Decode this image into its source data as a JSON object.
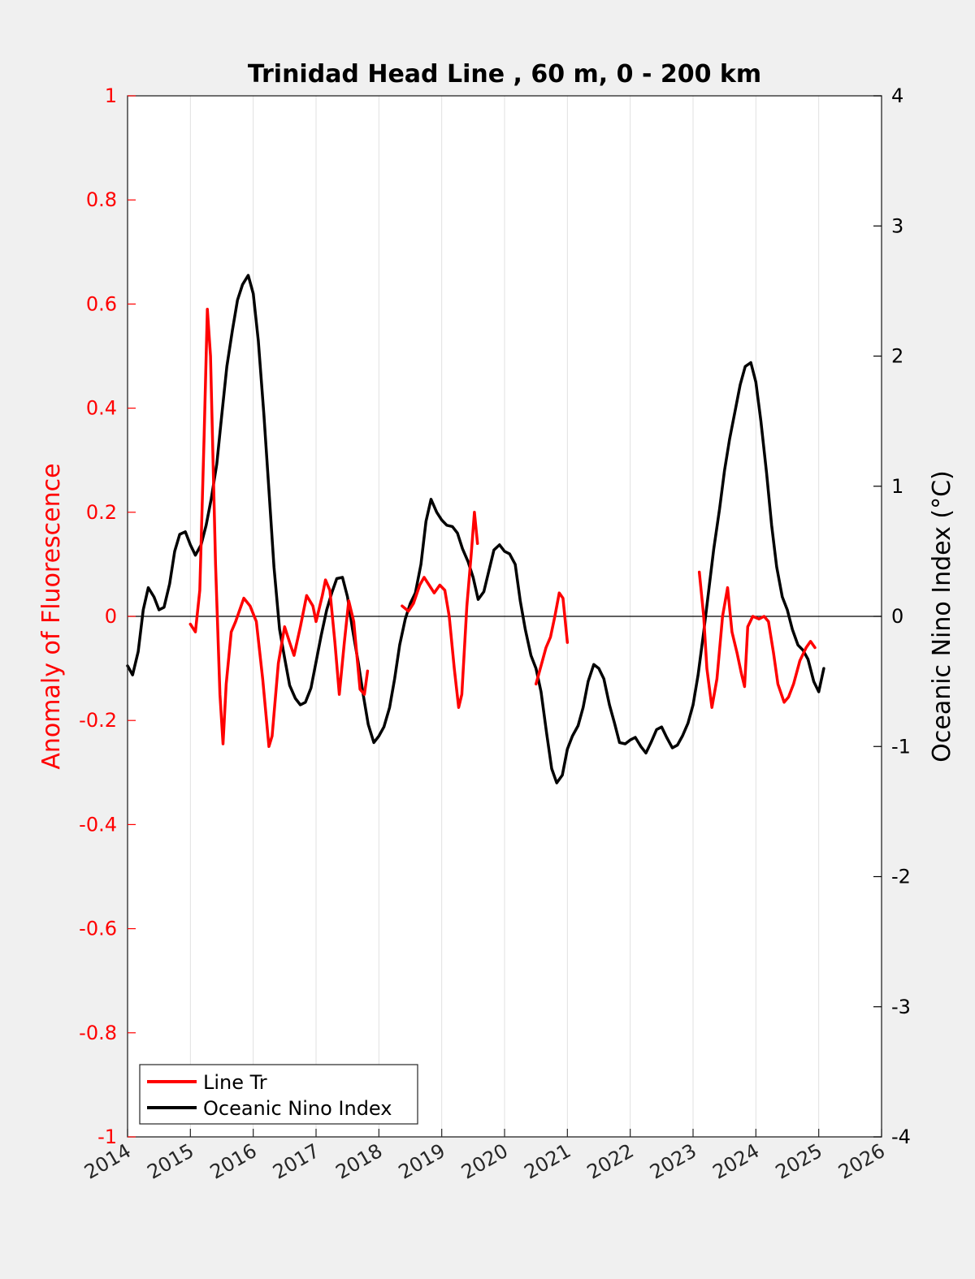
{
  "chart_data": {
    "type": "line",
    "title": "Trinidad Head Line , 60 m, 0 - 200 km",
    "ylabel_left": "Anomaly of Fluorescence",
    "ylabel_right": "Oceanic Nino Index (°C)",
    "xlim": [
      2014,
      2026
    ],
    "ylim_left": [
      -1,
      1
    ],
    "ylim_right": [
      -4,
      4
    ],
    "x_ticks": [
      "2014",
      "2015",
      "2016",
      "2017",
      "2018",
      "2019",
      "2020",
      "2021",
      "2022",
      "2023",
      "2024",
      "2025",
      "2026"
    ],
    "y_ticks_left": [
      "1",
      "0.8",
      "0.6",
      "0.4",
      "0.2",
      "0",
      "-0.2",
      "-0.4",
      "-0.6",
      "-0.8",
      "-1"
    ],
    "y_ticks_right": [
      "4",
      "3",
      "2",
      "1",
      "0",
      "-1",
      "-2",
      "-3",
      "-4"
    ],
    "grid": "vertical",
    "legend_position": "bottom-left",
    "colors": {
      "left_axis": "#ff0000",
      "right_axis": "#000000",
      "background": "#f0f0f0",
      "plot_background": "#ffffff",
      "grid": "#e0e0e0"
    },
    "series": [
      {
        "name": "Line Tr",
        "axis": "left",
        "color": "#ff0000",
        "segments": [
          [
            [
              2015.0,
              -0.015
            ],
            [
              2015.08,
              -0.03
            ],
            [
              2015.15,
              0.05
            ],
            [
              2015.22,
              0.35
            ],
            [
              2015.27,
              0.59
            ],
            [
              2015.32,
              0.5
            ],
            [
              2015.4,
              0.1
            ],
            [
              2015.47,
              -0.15
            ],
            [
              2015.52,
              -0.245
            ],
            [
              2015.57,
              -0.13
            ],
            [
              2015.65,
              -0.03
            ],
            [
              2015.72,
              -0.01
            ],
            [
              2015.85,
              0.035
            ],
            [
              2015.95,
              0.02
            ],
            [
              2016.05,
              -0.01
            ],
            [
              2016.15,
              -0.12
            ],
            [
              2016.25,
              -0.25
            ],
            [
              2016.3,
              -0.23
            ],
            [
              2016.4,
              -0.09
            ],
            [
              2016.5,
              -0.02
            ],
            [
              2016.58,
              -0.05
            ],
            [
              2016.65,
              -0.075
            ],
            [
              2016.75,
              -0.02
            ],
            [
              2016.85,
              0.04
            ],
            [
              2016.95,
              0.02
            ],
            [
              2017.0,
              -0.01
            ],
            [
              2017.1,
              0.04
            ],
            [
              2017.15,
              0.07
            ],
            [
              2017.22,
              0.05
            ],
            [
              2017.3,
              -0.05
            ],
            [
              2017.37,
              -0.15
            ],
            [
              2017.45,
              -0.05
            ],
            [
              2017.52,
              0.03
            ],
            [
              2017.6,
              -0.01
            ],
            [
              2017.7,
              -0.14
            ],
            [
              2017.77,
              -0.15
            ],
            [
              2017.82,
              -0.105
            ]
          ],
          [
            [
              2018.37,
              0.02
            ],
            [
              2018.47,
              0.01
            ],
            [
              2018.55,
              0.025
            ],
            [
              2018.65,
              0.06
            ],
            [
              2018.72,
              0.075
            ],
            [
              2018.8,
              0.06
            ],
            [
              2018.88,
              0.045
            ],
            [
              2018.97,
              0.06
            ],
            [
              2019.05,
              0.05
            ],
            [
              2019.12,
              0.0
            ],
            [
              2019.2,
              -0.1
            ],
            [
              2019.27,
              -0.175
            ],
            [
              2019.32,
              -0.15
            ],
            [
              2019.4,
              0.02
            ],
            [
              2019.47,
              0.12
            ],
            [
              2019.52,
              0.2
            ],
            [
              2019.57,
              0.14
            ]
          ],
          [
            [
              2020.5,
              -0.13
            ],
            [
              2020.58,
              -0.095
            ],
            [
              2020.66,
              -0.06
            ],
            [
              2020.73,
              -0.04
            ],
            [
              2020.8,
              0.0
            ],
            [
              2020.87,
              0.045
            ],
            [
              2020.93,
              0.035
            ],
            [
              2021.0,
              -0.05
            ]
          ],
          [
            [
              2023.1,
              0.085
            ],
            [
              2023.17,
              0.0
            ],
            [
              2023.22,
              -0.1
            ],
            [
              2023.3,
              -0.175
            ],
            [
              2023.38,
              -0.12
            ],
            [
              2023.47,
              0.0
            ],
            [
              2023.55,
              0.055
            ],
            [
              2023.62,
              -0.03
            ],
            [
              2023.7,
              -0.07
            ],
            [
              2023.77,
              -0.11
            ],
            [
              2023.82,
              -0.135
            ],
            [
              2023.87,
              -0.02
            ],
            [
              2023.95,
              0.0
            ],
            [
              2024.05,
              -0.005
            ],
            [
              2024.13,
              0.0
            ],
            [
              2024.2,
              -0.01
            ],
            [
              2024.28,
              -0.07
            ],
            [
              2024.35,
              -0.13
            ],
            [
              2024.45,
              -0.165
            ],
            [
              2024.52,
              -0.155
            ],
            [
              2024.6,
              -0.13
            ],
            [
              2024.7,
              -0.085
            ],
            [
              2024.8,
              -0.06
            ],
            [
              2024.87,
              -0.048
            ],
            [
              2024.94,
              -0.06
            ]
          ]
        ]
      },
      {
        "name": "Oceanic Nino Index",
        "axis": "right",
        "color": "#000000",
        "segments": [
          [
            [
              2014.0,
              -0.38
            ],
            [
              2014.08,
              -0.45
            ],
            [
              2014.17,
              -0.27
            ],
            [
              2014.25,
              0.05
            ],
            [
              2014.33,
              0.22
            ],
            [
              2014.42,
              0.15
            ],
            [
              2014.5,
              0.05
            ],
            [
              2014.58,
              0.07
            ],
            [
              2014.67,
              0.25
            ],
            [
              2014.75,
              0.5
            ],
            [
              2014.83,
              0.63
            ],
            [
              2014.92,
              0.65
            ],
            [
              2015.0,
              0.55
            ],
            [
              2015.08,
              0.47
            ],
            [
              2015.17,
              0.55
            ],
            [
              2015.25,
              0.7
            ],
            [
              2015.33,
              0.9
            ],
            [
              2015.42,
              1.17
            ],
            [
              2015.5,
              1.55
            ],
            [
              2015.58,
              1.92
            ],
            [
              2015.67,
              2.2
            ],
            [
              2015.75,
              2.43
            ],
            [
              2015.83,
              2.55
            ],
            [
              2015.92,
              2.62
            ],
            [
              2016.0,
              2.48
            ],
            [
              2016.08,
              2.12
            ],
            [
              2016.17,
              1.55
            ],
            [
              2016.25,
              0.97
            ],
            [
              2016.33,
              0.38
            ],
            [
              2016.42,
              -0.1
            ],
            [
              2016.5,
              -0.32
            ],
            [
              2016.58,
              -0.53
            ],
            [
              2016.67,
              -0.63
            ],
            [
              2016.75,
              -0.68
            ],
            [
              2016.83,
              -0.66
            ],
            [
              2016.92,
              -0.55
            ],
            [
              2017.0,
              -0.35
            ],
            [
              2017.08,
              -0.15
            ],
            [
              2017.17,
              0.05
            ],
            [
              2017.25,
              0.18
            ],
            [
              2017.33,
              0.29
            ],
            [
              2017.42,
              0.3
            ],
            [
              2017.5,
              0.15
            ],
            [
              2017.58,
              -0.1
            ],
            [
              2017.67,
              -0.35
            ],
            [
              2017.75,
              -0.6
            ],
            [
              2017.83,
              -0.83
            ],
            [
              2017.92,
              -0.97
            ],
            [
              2018.0,
              -0.92
            ],
            [
              2018.08,
              -0.85
            ],
            [
              2018.17,
              -0.7
            ],
            [
              2018.25,
              -0.48
            ],
            [
              2018.33,
              -0.22
            ],
            [
              2018.42,
              -0.02
            ],
            [
              2018.5,
              0.1
            ],
            [
              2018.58,
              0.18
            ],
            [
              2018.67,
              0.4
            ],
            [
              2018.75,
              0.73
            ],
            [
              2018.83,
              0.9
            ],
            [
              2018.92,
              0.8
            ],
            [
              2019.0,
              0.74
            ],
            [
              2019.08,
              0.7
            ],
            [
              2019.17,
              0.69
            ],
            [
              2019.25,
              0.64
            ],
            [
              2019.33,
              0.52
            ],
            [
              2019.42,
              0.42
            ],
            [
              2019.5,
              0.3
            ],
            [
              2019.58,
              0.13
            ],
            [
              2019.67,
              0.19
            ],
            [
              2019.75,
              0.35
            ],
            [
              2019.83,
              0.51
            ],
            [
              2019.92,
              0.55
            ],
            [
              2020.0,
              0.5
            ],
            [
              2020.08,
              0.48
            ],
            [
              2020.17,
              0.4
            ],
            [
              2020.25,
              0.12
            ],
            [
              2020.33,
              -0.1
            ],
            [
              2020.42,
              -0.3
            ],
            [
              2020.5,
              -0.4
            ],
            [
              2020.58,
              -0.58
            ],
            [
              2020.67,
              -0.9
            ],
            [
              2020.75,
              -1.17
            ],
            [
              2020.83,
              -1.28
            ],
            [
              2020.92,
              -1.22
            ],
            [
              2021.0,
              -1.02
            ],
            [
              2021.08,
              -0.92
            ],
            [
              2021.17,
              -0.84
            ],
            [
              2021.25,
              -0.7
            ],
            [
              2021.33,
              -0.5
            ],
            [
              2021.42,
              -0.37
            ],
            [
              2021.5,
              -0.4
            ],
            [
              2021.58,
              -0.48
            ],
            [
              2021.67,
              -0.68
            ],
            [
              2021.75,
              -0.82
            ],
            [
              2021.83,
              -0.97
            ],
            [
              2021.92,
              -0.98
            ],
            [
              2022.0,
              -0.95
            ],
            [
              2022.08,
              -0.93
            ],
            [
              2022.17,
              -1.0
            ],
            [
              2022.25,
              -1.05
            ],
            [
              2022.33,
              -0.97
            ],
            [
              2022.42,
              -0.87
            ],
            [
              2022.5,
              -0.85
            ],
            [
              2022.58,
              -0.93
            ],
            [
              2022.67,
              -1.01
            ],
            [
              2022.75,
              -0.99
            ],
            [
              2022.83,
              -0.92
            ],
            [
              2022.92,
              -0.82
            ],
            [
              2023.0,
              -0.68
            ],
            [
              2023.08,
              -0.45
            ],
            [
              2023.17,
              -0.12
            ],
            [
              2023.25,
              0.2
            ],
            [
              2023.33,
              0.52
            ],
            [
              2023.42,
              0.82
            ],
            [
              2023.5,
              1.12
            ],
            [
              2023.58,
              1.36
            ],
            [
              2023.67,
              1.58
            ],
            [
              2023.75,
              1.78
            ],
            [
              2023.83,
              1.92
            ],
            [
              2023.92,
              1.95
            ],
            [
              2024.0,
              1.8
            ],
            [
              2024.08,
              1.5
            ],
            [
              2024.17,
              1.1
            ],
            [
              2024.25,
              0.7
            ],
            [
              2024.33,
              0.38
            ],
            [
              2024.42,
              0.15
            ],
            [
              2024.5,
              0.05
            ],
            [
              2024.58,
              -0.1
            ],
            [
              2024.67,
              -0.22
            ],
            [
              2024.75,
              -0.26
            ],
            [
              2024.83,
              -0.33
            ],
            [
              2024.92,
              -0.5
            ],
            [
              2025.0,
              -0.58
            ],
            [
              2025.08,
              -0.4
            ]
          ]
        ]
      }
    ]
  }
}
